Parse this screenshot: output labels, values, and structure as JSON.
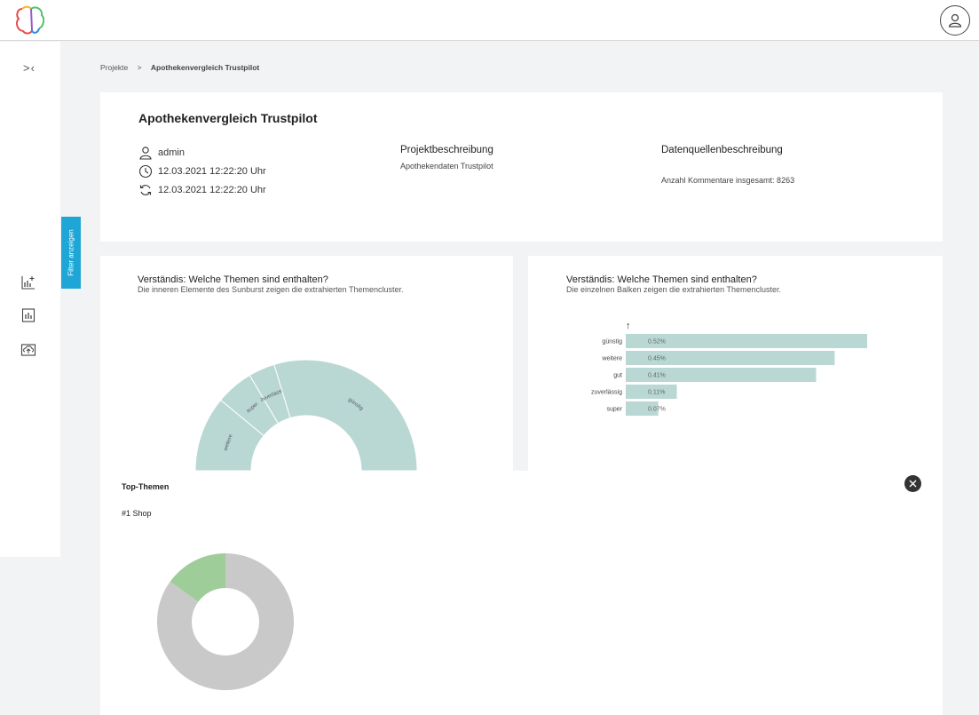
{
  "breadcrumb": {
    "root": "Projekte",
    "separator": ">",
    "current": "Apothekenvergleich Trustpilot"
  },
  "sidebar": {
    "filter_tab_label": "Filter anzeigen",
    "collapse_glyph": ">‹"
  },
  "project": {
    "title": "Apothekenvergleich Trustpilot",
    "owner": "admin",
    "created": "12.03.2021 12:22:20 Uhr",
    "updated": "12.03.2021 12:22:20 Uhr",
    "description_heading": "Projektbeschreibung",
    "description_text": "Apothekendaten Trustpilot",
    "datasource_heading": "Datenquellenbeschreibung",
    "datasource_text": "Anzahl Kommentare insgesamt: 8263"
  },
  "sunburst_panel": {
    "title": "Verständis: Welche Themen sind enthalten?",
    "subtitle": "Die inneren Elemente des Sunburst zeigen die extrahierten Themencluster."
  },
  "bar_panel": {
    "title": "Verständis: Welche Themen sind enthalten?",
    "subtitle": "Die einzelnen Balken zeigen die extrahierten Themencluster.",
    "sort_arrow": "↑"
  },
  "top_themes": {
    "title": "Top-Themen",
    "rank_label": "#1 Shop"
  },
  "colors": {
    "accent": "#1ea7d6",
    "bar": "#b9d8d3",
    "donut_gray": "#c9c9c9",
    "donut_green": "#9fcd9a"
  },
  "chart_data": [
    {
      "type": "pie",
      "title": "Verständis: Welche Themen sind enthalten?",
      "categories": [
        "günstig",
        "zuverlässig",
        "weitere",
        "super"
      ],
      "values": [
        0.52,
        0.11,
        0.45,
        0.07
      ]
    },
    {
      "type": "bar",
      "title": "Verständis: Welche Themen sind enthalten?",
      "categories": [
        "günstig",
        "weitere",
        "gut",
        "zuverlässig",
        "super"
      ],
      "values": [
        0.52,
        0.45,
        0.41,
        0.11,
        0.07
      ],
      "value_labels": [
        "0.52%",
        "0.45%",
        "0.41%",
        "0.11%",
        "0.07%"
      ],
      "orientation": "horizontal"
    },
    {
      "type": "pie",
      "title": "#1 Shop",
      "values": [
        0.85,
        0.15
      ]
    }
  ]
}
